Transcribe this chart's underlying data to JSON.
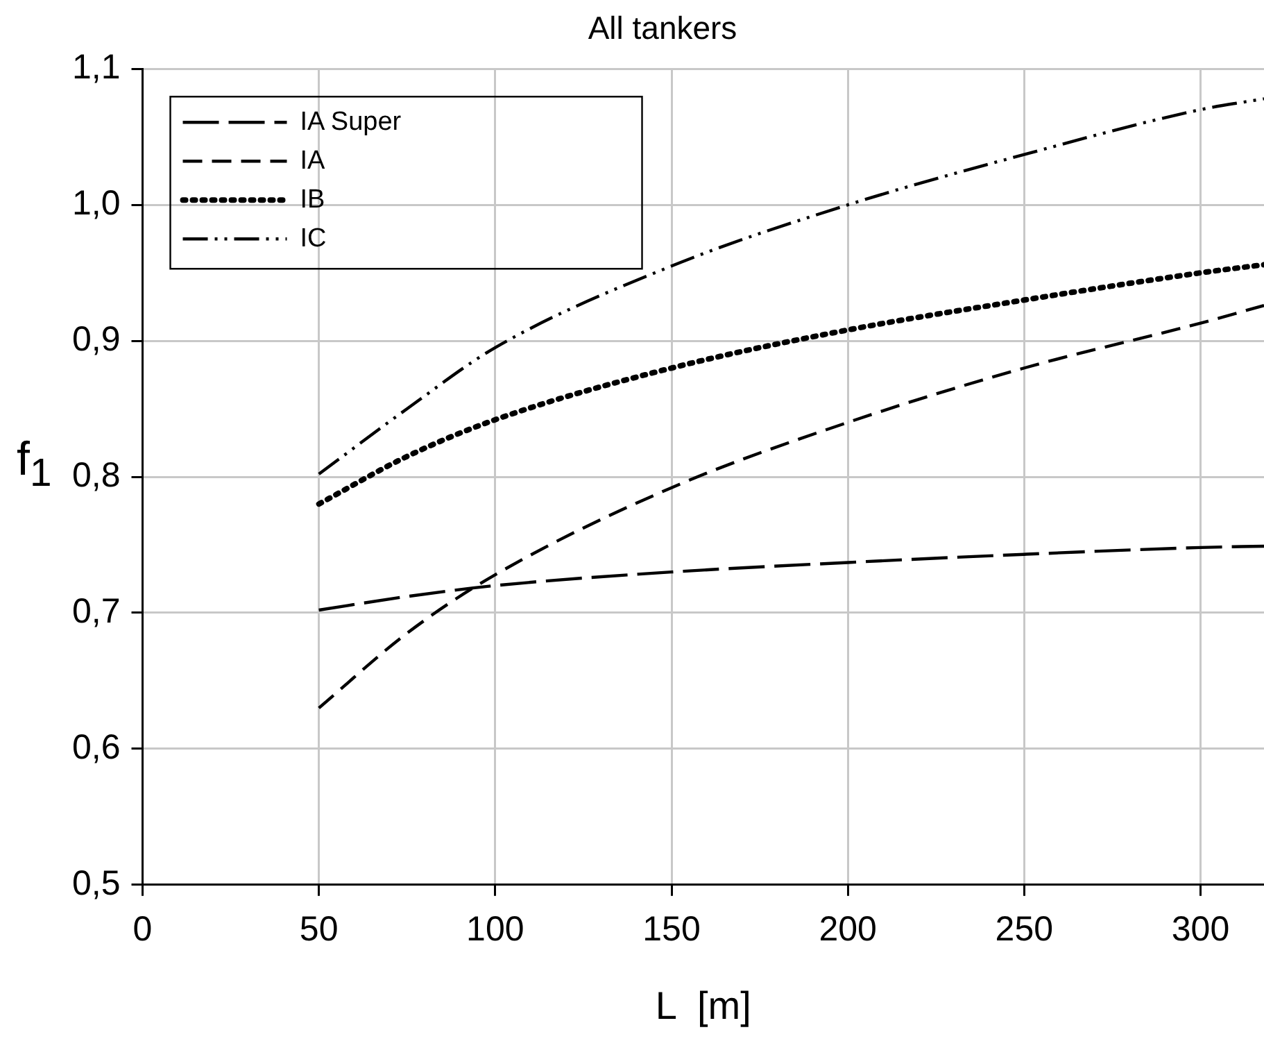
{
  "chart_data": {
    "type": "line",
    "title": "All tankers",
    "xlabel": "L  [m]",
    "ylabel": "f$_{1}$",
    "xlim": [
      0,
      318
    ],
    "xticks": [
      0,
      50,
      100,
      150,
      200,
      250,
      300
    ],
    "ylim": [
      0.5,
      1.1
    ],
    "yticks": [
      {
        "value": 0.5,
        "label": "0,5"
      },
      {
        "value": 0.6,
        "label": "0,6"
      },
      {
        "value": 0.7,
        "label": "0,7"
      },
      {
        "value": 0.8,
        "label": "0,8"
      },
      {
        "value": 0.9,
        "label": "0,9"
      },
      {
        "value": 1.0,
        "label": "1,0"
      },
      {
        "value": 1.1,
        "label": "1,1"
      }
    ],
    "grid": true,
    "legend": "top left",
    "marker": "none",
    "x": [
      50,
      75,
      100,
      150,
      200,
      250,
      300,
      318
    ],
    "series": [
      {
        "name": "IA Super",
        "color": "#000000",
        "line_style": "longdash",
        "values": [
          0.702,
          0.712,
          0.72,
          0.73,
          0.737,
          0.743,
          0.748,
          0.749
        ]
      },
      {
        "name": "IA",
        "color": "#000000",
        "line_style": "dashed",
        "values": [
          0.63,
          0.685,
          0.728,
          0.792,
          0.84,
          0.88,
          0.913,
          0.926
        ]
      },
      {
        "name": "IB",
        "color": "#000000",
        "line_style": "dotted",
        "values": [
          0.78,
          0.815,
          0.842,
          0.88,
          0.908,
          0.93,
          0.95,
          0.956
        ]
      },
      {
        "name": "IC",
        "color": "#000000",
        "line_style": "dashdotdot",
        "values": [
          0.802,
          0.85,
          0.895,
          0.955,
          1.0,
          1.037,
          1.07,
          1.078
        ]
      }
    ]
  }
}
